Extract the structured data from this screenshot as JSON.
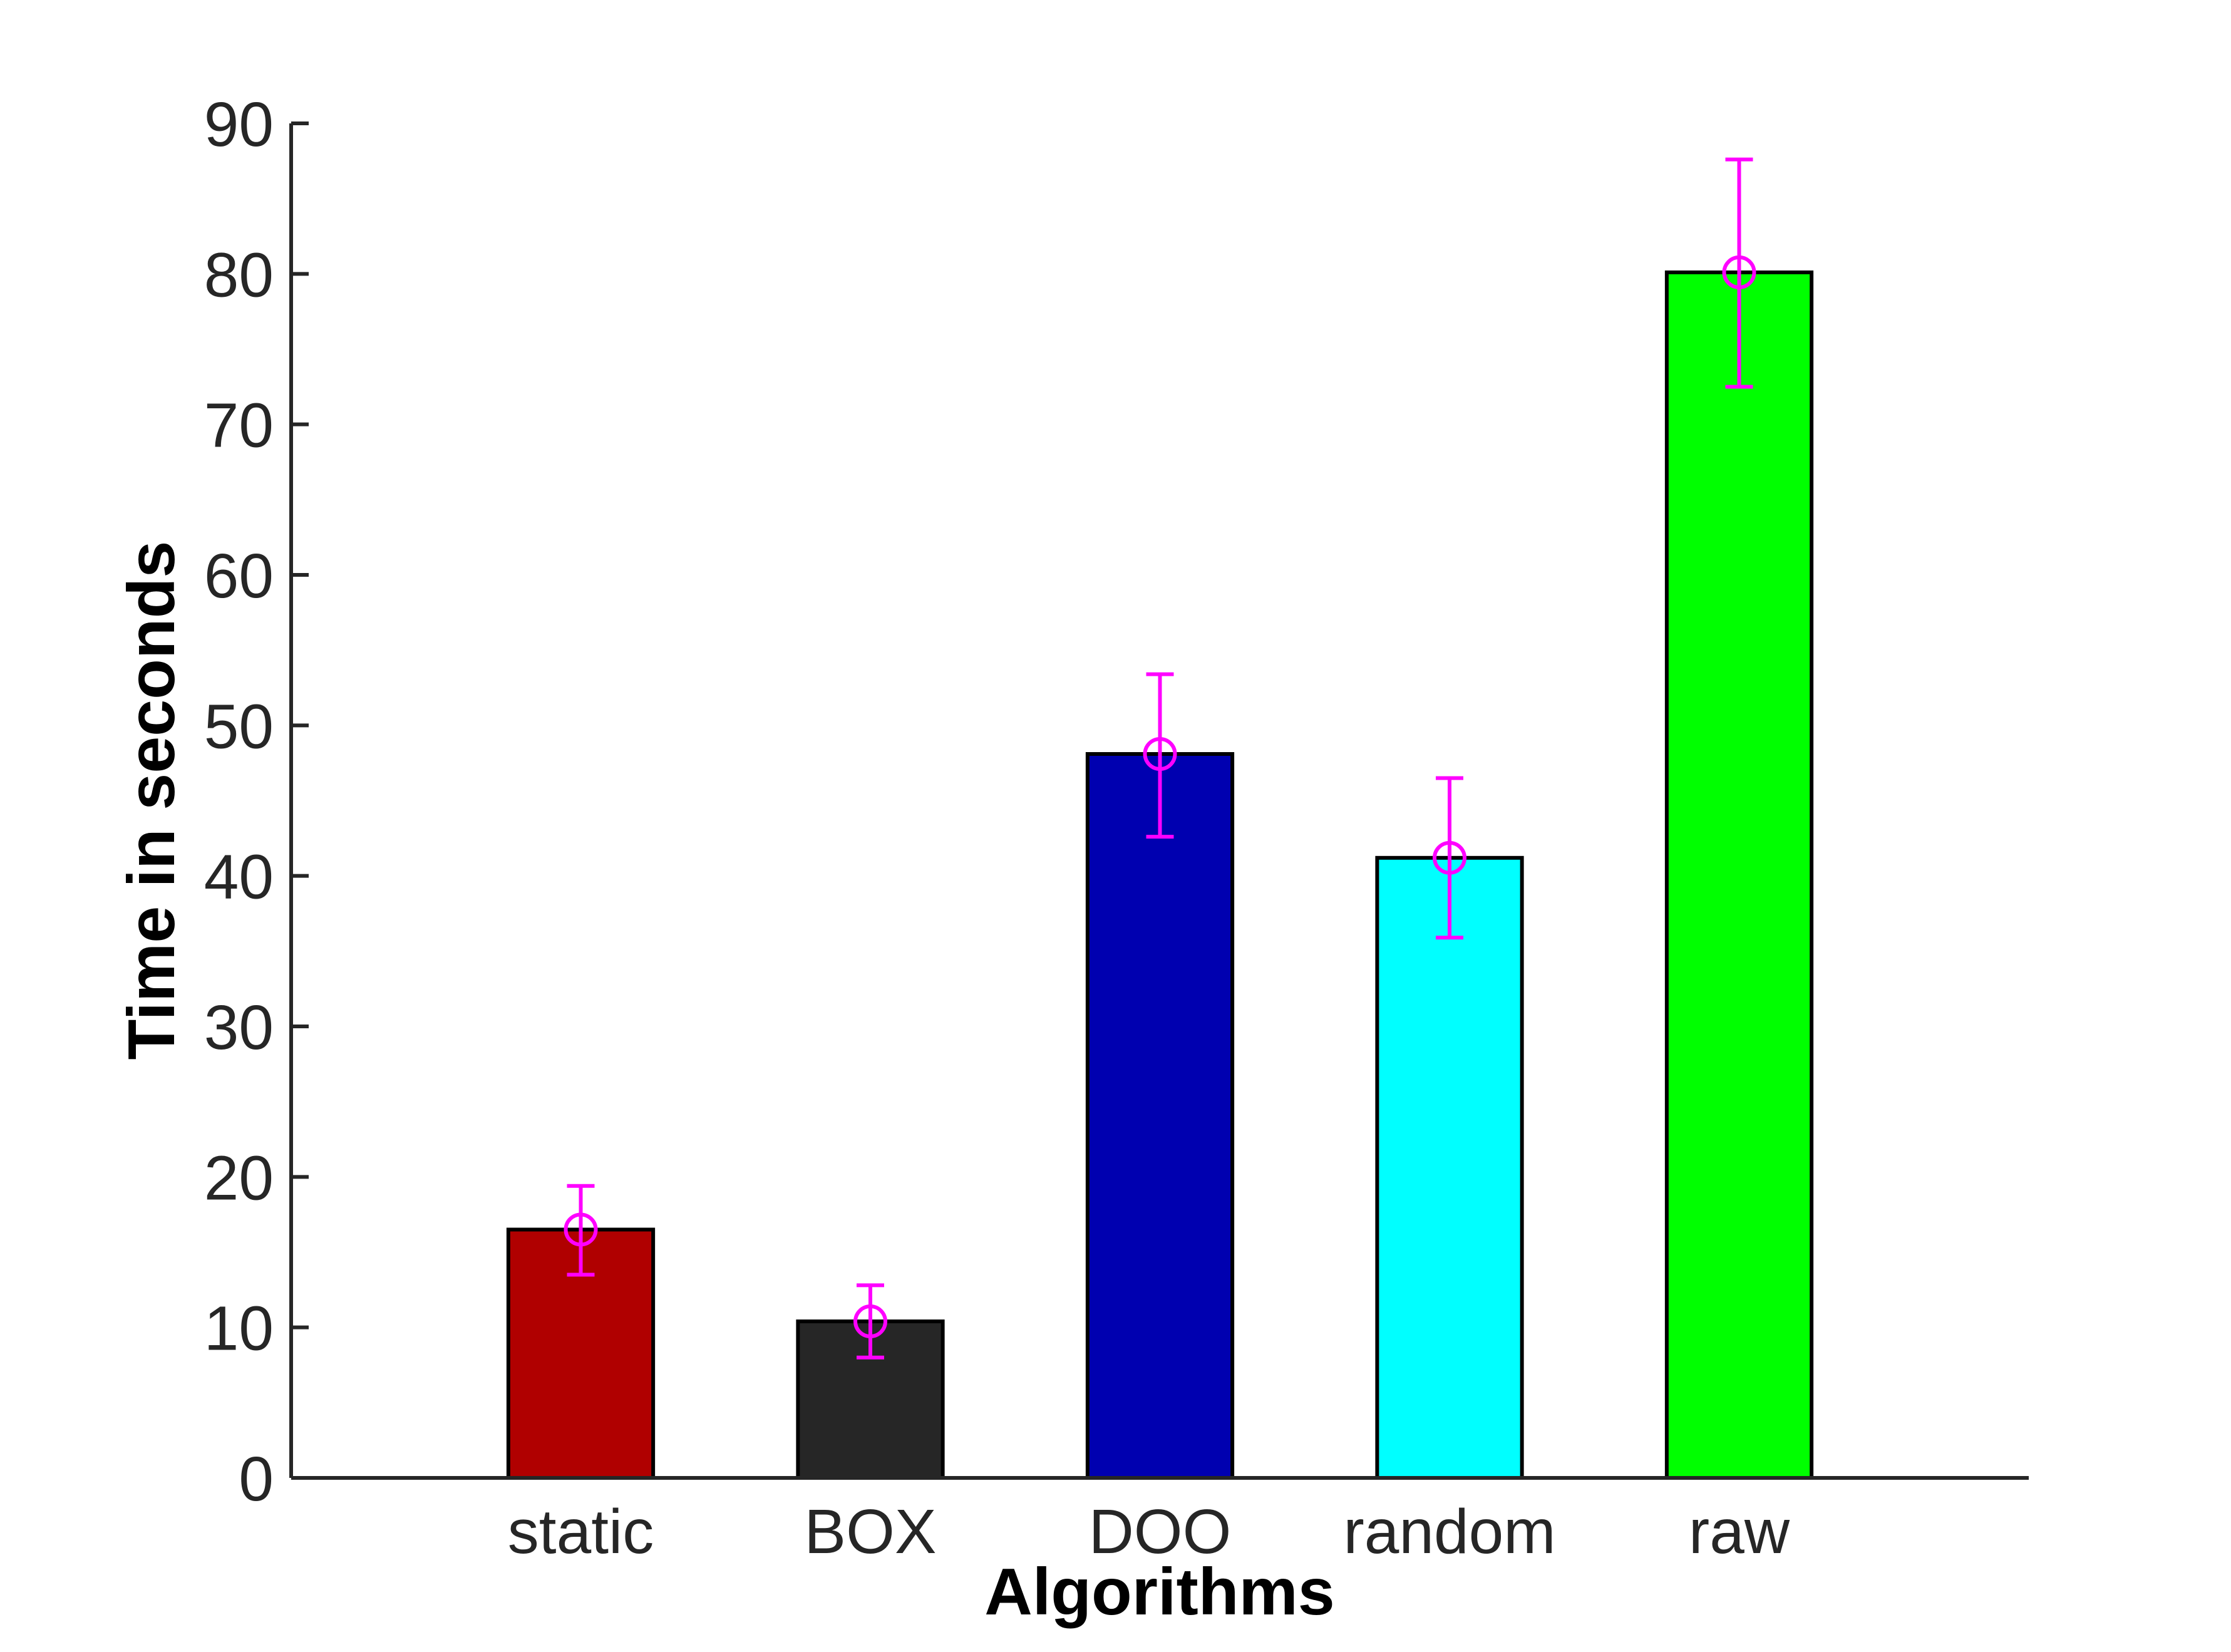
{
  "chart_data": {
    "type": "bar",
    "categories": [
      "static",
      "BOX",
      "DOO",
      "random",
      "raw"
    ],
    "values": [
      16.5,
      10.4,
      48.1,
      41.2,
      80.1
    ],
    "errors": [
      {
        "low": 13.5,
        "high": 19.4
      },
      {
        "low": 8.0,
        "high": 12.8
      },
      {
        "low": 42.6,
        "high": 53.4
      },
      {
        "low": 35.9,
        "high": 46.5
      },
      {
        "low": 72.5,
        "high": 87.6
      }
    ],
    "bar_colors": [
      "#b00000",
      "#262626",
      "#0000b0",
      "#00ffff",
      "#00ff00"
    ],
    "error_color": "#ff00ff",
    "title": "",
    "xlabel": "Algorithms",
    "ylabel": "Time in seconds",
    "ylim": [
      0,
      90
    ],
    "yticks": [
      0,
      10,
      20,
      30,
      40,
      50,
      60,
      70,
      80,
      90
    ],
    "xlim": [
      0,
      6
    ],
    "grid": false
  }
}
